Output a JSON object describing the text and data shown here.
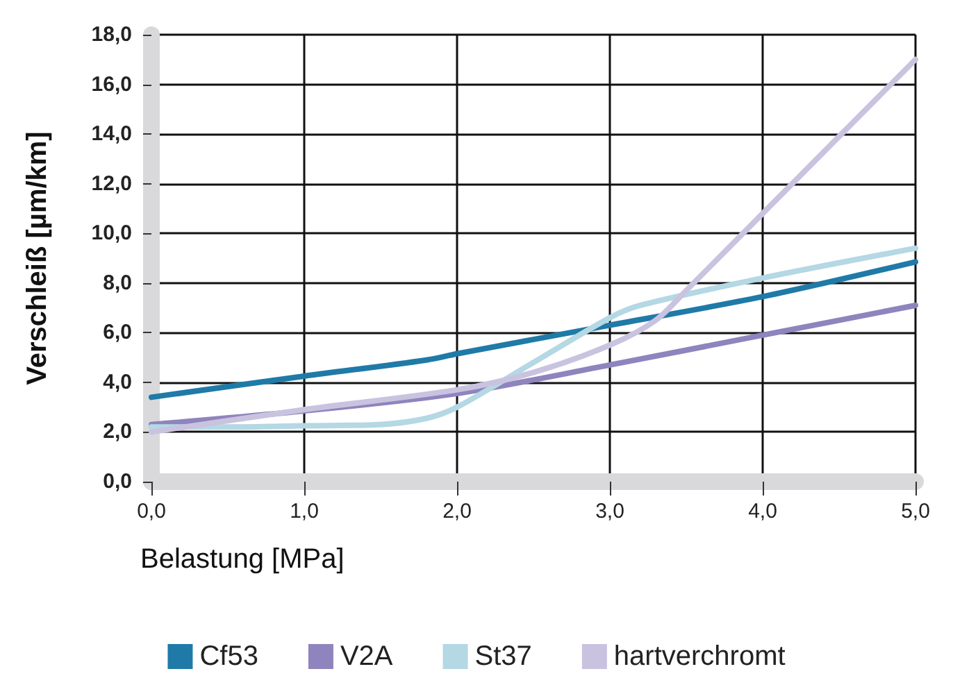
{
  "chart_data": {
    "type": "line",
    "xlabel": "Belastung [MPa]",
    "ylabel": "Verschleiß [µm/km]",
    "xlim": [
      0,
      5
    ],
    "xticks": [
      {
        "value": 0,
        "label": "0,0"
      },
      {
        "value": 1,
        "label": "1,0"
      },
      {
        "value": 2,
        "label": "2,0"
      },
      {
        "value": 3,
        "label": "3,0"
      },
      {
        "value": 4,
        "label": "4,0"
      },
      {
        "value": 5,
        "label": "5,0"
      }
    ],
    "ylim": [
      0,
      18
    ],
    "yticks": [
      {
        "value": 0,
        "label": "0,0"
      },
      {
        "value": 2,
        "label": "2,0"
      },
      {
        "value": 4,
        "label": "4,0"
      },
      {
        "value": 6,
        "label": "6,0"
      },
      {
        "value": 8,
        "label": "8,0"
      },
      {
        "value": 10,
        "label": "10,0"
      },
      {
        "value": 12,
        "label": "12,0"
      },
      {
        "value": 14,
        "label": "14,0"
      },
      {
        "value": 16,
        "label": "16,0"
      },
      {
        "value": 18,
        "label": "18,0"
      }
    ],
    "grid": true,
    "legend": "bottom",
    "marker": "none",
    "line_style": "solid",
    "series": [
      {
        "name": "Cf53",
        "color": "#1f7aa8",
        "x": [
          0,
          1,
          1.8,
          2,
          3,
          4,
          5
        ],
        "values": [
          3.4,
          4.25,
          4.9,
          5.15,
          6.3,
          7.45,
          8.85
        ]
      },
      {
        "name": "V2A",
        "color": "#8f84bd",
        "x": [
          0,
          1,
          2,
          3,
          4,
          5
        ],
        "values": [
          2.3,
          2.85,
          3.55,
          4.7,
          5.9,
          7.1
        ]
      },
      {
        "name": "St37",
        "color": "#b4d8e4",
        "x": [
          0,
          0.5,
          1,
          1.5,
          1.8,
          2,
          2.5,
          3,
          3.2,
          4,
          5
        ],
        "values": [
          2.2,
          2.2,
          2.25,
          2.3,
          2.55,
          3.0,
          4.8,
          6.6,
          7.1,
          8.2,
          9.4
        ]
      },
      {
        "name": "hartverchromt",
        "color": "#c9c3e0",
        "x": [
          0,
          1,
          2,
          2.5,
          3,
          3.3,
          3.5,
          4,
          4.5,
          5
        ],
        "values": [
          2.0,
          2.9,
          3.7,
          4.4,
          5.5,
          6.5,
          7.7,
          10.8,
          13.9,
          17.0
        ]
      }
    ]
  }
}
